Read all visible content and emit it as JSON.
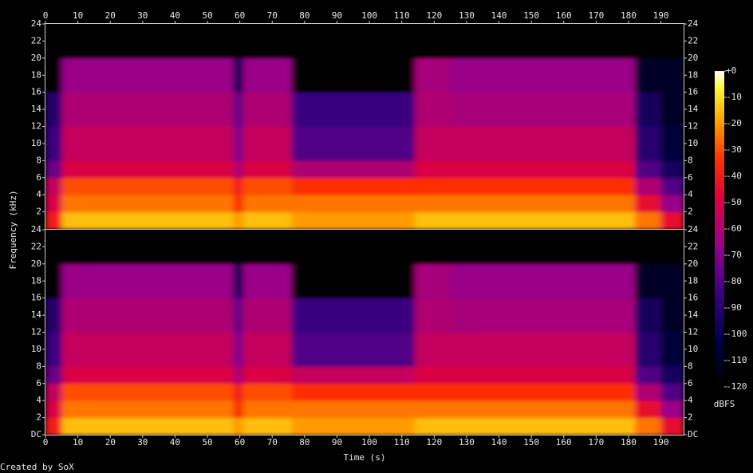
{
  "chart_data": [
    {
      "type": "heatmap",
      "colormap": "sox",
      "xaxis_position": "top",
      "ylabel": "Frequency (kHz)",
      "x_edges": [
        0,
        5,
        58,
        61,
        76,
        114,
        125,
        182,
        190,
        197
      ],
      "y_edges": [
        0,
        2,
        4,
        6,
        8,
        12,
        16,
        20,
        24
      ],
      "values": [
        [
          -40,
          -15,
          -20,
          -15,
          -20,
          -15,
          -15,
          -25,
          -45
        ],
        [
          -50,
          -25,
          -35,
          -25,
          -25,
          -25,
          -25,
          -45,
          -65
        ],
        [
          -55,
          -30,
          -40,
          -30,
          -35,
          -35,
          -35,
          -60,
          -80
        ],
        [
          -75,
          -50,
          -60,
          -50,
          -60,
          -50,
          -50,
          -80,
          -95
        ],
        [
          -85,
          -55,
          -70,
          -55,
          -80,
          -55,
          -55,
          -90,
          -105
        ],
        [
          -90,
          -60,
          -75,
          -60,
          -85,
          -60,
          -62,
          -95,
          -110
        ],
        [
          -120,
          -65,
          -95,
          -65,
          -120,
          -62,
          -65,
          -110,
          -110
        ],
        [
          -120,
          -120,
          -120,
          -120,
          -120,
          -120,
          -120,
          -120,
          -120
        ]
      ],
      "xlim": [
        0,
        197
      ],
      "ylim": [
        0,
        24
      ],
      "xticks": [
        0,
        10,
        20,
        30,
        40,
        50,
        60,
        70,
        80,
        90,
        100,
        110,
        120,
        130,
        140,
        150,
        160,
        170,
        180,
        190
      ],
      "yticks": [
        2,
        4,
        6,
        8,
        10,
        12,
        14,
        16,
        18,
        20,
        22,
        24
      ],
      "colorbar": {
        "label": "dBFS",
        "lim": [
          -120,
          0
        ],
        "ticks": [
          {
            "value": 0,
            "label": "+0"
          },
          -10,
          -20,
          -30,
          -40,
          -50,
          -60,
          -70,
          -80,
          -90,
          -100,
          -110,
          -120
        ]
      }
    },
    {
      "type": "heatmap",
      "colormap": "sox",
      "xaxis_position": "bottom",
      "xlabel": "Time (s)",
      "x_edges": [
        0,
        5,
        58,
        61,
        76,
        114,
        125,
        182,
        190,
        197
      ],
      "y_edges": [
        0,
        2,
        4,
        6,
        8,
        12,
        16,
        20,
        24
      ],
      "values": [
        [
          -40,
          -15,
          -20,
          -15,
          -20,
          -15,
          -15,
          -25,
          -45
        ],
        [
          -50,
          -25,
          -35,
          -25,
          -25,
          -25,
          -25,
          -45,
          -65
        ],
        [
          -55,
          -30,
          -40,
          -30,
          -35,
          -35,
          -35,
          -60,
          -80
        ],
        [
          -75,
          -50,
          -60,
          -50,
          -55,
          -50,
          -50,
          -80,
          -95
        ],
        [
          -85,
          -55,
          -70,
          -55,
          -80,
          -55,
          -55,
          -90,
          -105
        ],
        [
          -90,
          -60,
          -75,
          -60,
          -85,
          -60,
          -62,
          -95,
          -110
        ],
        [
          -120,
          -65,
          -95,
          -65,
          -120,
          -62,
          -65,
          -110,
          -110
        ],
        [
          -120,
          -120,
          -120,
          -120,
          -120,
          -120,
          -120,
          -120,
          -120
        ]
      ],
      "xlim": [
        0,
        197
      ],
      "ylim": [
        0,
        24
      ],
      "xticks": [
        0,
        10,
        20,
        30,
        40,
        50,
        60,
        70,
        80,
        90,
        100,
        110,
        120,
        130,
        140,
        150,
        160,
        170,
        180,
        190
      ],
      "yticks": [
        {
          "value": 0,
          "label": "DC"
        },
        2,
        4,
        6,
        8,
        10,
        12,
        14,
        16,
        18,
        20,
        22,
        24
      ]
    }
  ],
  "footer": "Created by SoX"
}
